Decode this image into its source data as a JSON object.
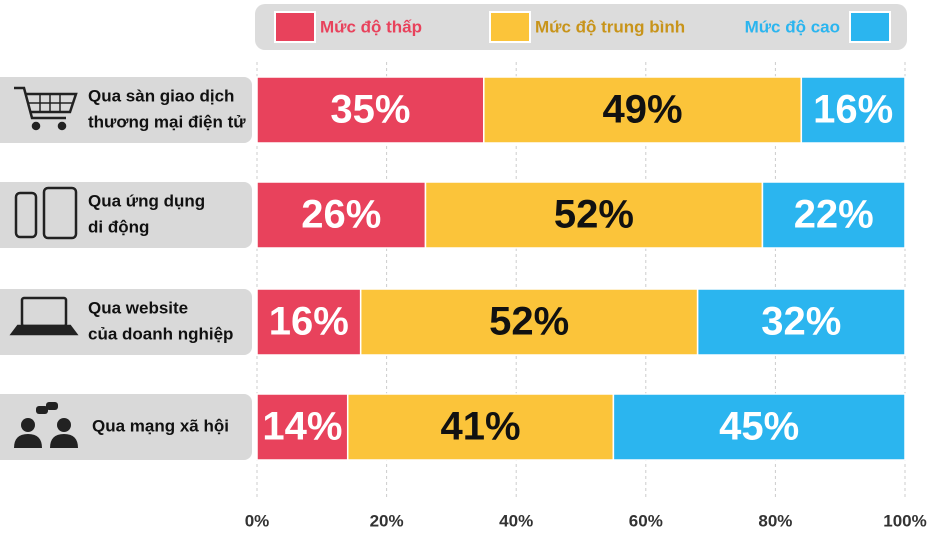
{
  "chart_data": {
    "type": "stacked_barh",
    "categories": [
      [
        "Qua sàn giao dịch",
        "thương mại điện tử"
      ],
      [
        "Qua ứng dụng",
        "di động"
      ],
      [
        "Qua website",
        "của doanh nghiệp"
      ],
      [
        "Qua mạng xã hội"
      ]
    ],
    "series": [
      {
        "name": "Mức độ thấp",
        "color": "#e8425c",
        "values": [
          35,
          26,
          16,
          14
        ],
        "value_labels": [
          "35%",
          "26%",
          "16%",
          "14%"
        ]
      },
      {
        "name": "Mức độ trung bình",
        "color": "#fbc43a",
        "values": [
          49,
          52,
          52,
          41
        ],
        "value_labels": [
          "49%",
          "52%",
          "52%",
          "41%"
        ]
      },
      {
        "name": "Mức độ cao",
        "color": "#2bb5ef",
        "values": [
          16,
          22,
          32,
          45
        ],
        "value_labels": [
          "16%",
          "22%",
          "32%",
          "45%"
        ]
      }
    ],
    "xlim": [
      0,
      100
    ],
    "xticks": [
      {
        "value": 0,
        "label": "0%"
      },
      {
        "value": 20,
        "label": "20%"
      },
      {
        "value": 40,
        "label": "40%"
      },
      {
        "value": 60,
        "label": "60%"
      },
      {
        "value": 80,
        "label": "80%"
      },
      {
        "value": 100,
        "label": "100%"
      }
    ],
    "grid": true
  }
}
